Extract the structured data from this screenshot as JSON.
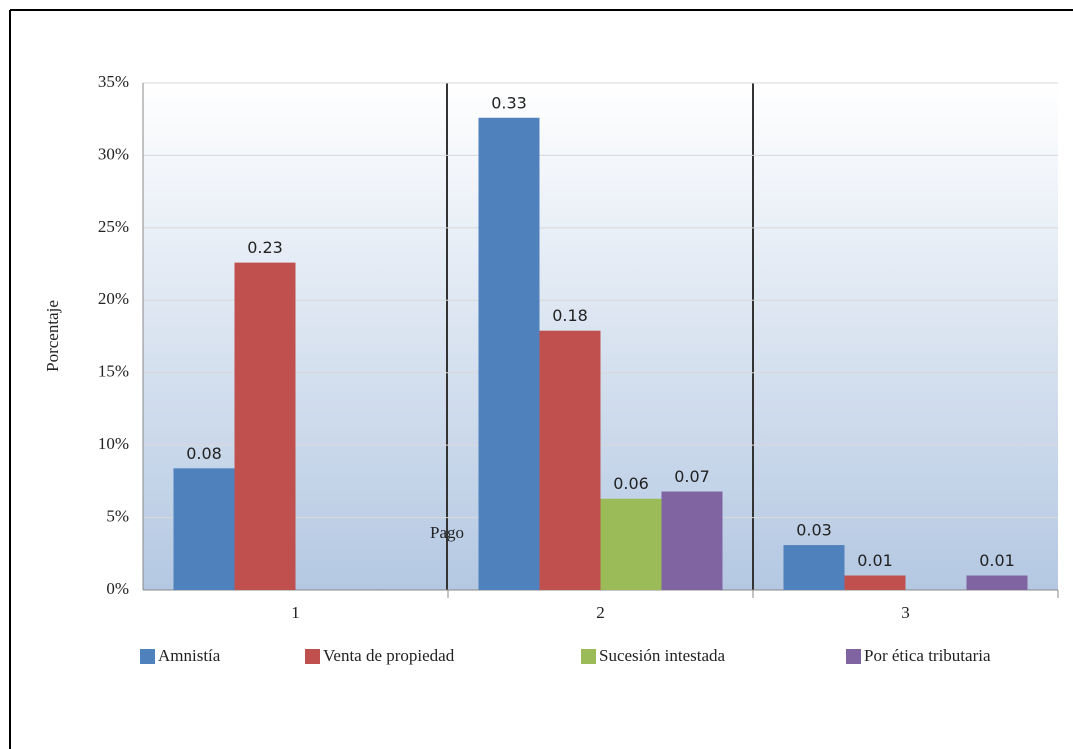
{
  "chart_data": {
    "type": "bar",
    "y_label": "Porcentaje",
    "x_label": "Pago",
    "categories": [
      "1",
      "2",
      "3"
    ],
    "series": [
      {
        "name": "Amnistía",
        "color": "#4f81bd",
        "values": [
          8.4,
          32.6,
          3.1
        ],
        "value_labels": [
          "0.08",
          "0.33",
          "0.03"
        ]
      },
      {
        "name": "Venta de propiedad",
        "color": "#c0504d",
        "values": [
          22.6,
          17.9,
          1.0
        ],
        "value_labels": [
          "0.23",
          "0.18",
          "0.01"
        ]
      },
      {
        "name": "Sucesión intestada",
        "color": "#9bbb59",
        "values": [
          null,
          6.3,
          null
        ],
        "value_labels": [
          null,
          "0.06",
          null
        ]
      },
      {
        "name": "Por ética tributaria",
        "color": "#8064a2",
        "values": [
          null,
          6.8,
          1.0
        ],
        "value_labels": [
          null,
          "0.07",
          "0.01"
        ]
      }
    ],
    "ylim": [
      0,
      35
    ],
    "yticks": [
      {
        "value": 0,
        "label": "0%"
      },
      {
        "value": 5,
        "label": "5%"
      },
      {
        "value": 10,
        "label": "10%"
      },
      {
        "value": 15,
        "label": "15%"
      },
      {
        "value": 20,
        "label": "20%"
      },
      {
        "value": 25,
        "label": "25%"
      },
      {
        "value": 30,
        "label": "30%"
      },
      {
        "value": 35,
        "label": "35%"
      }
    ],
    "grid": true
  }
}
